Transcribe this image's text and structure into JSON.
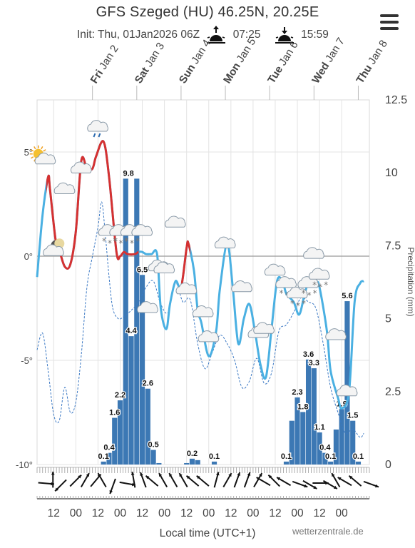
{
  "header": {
    "title": "GFS Szeged (HU) 46.25N, 20.25E",
    "init": "Init: Thu, 01Jan2026 06Z",
    "sunrise": "07:25",
    "sunset": "15:59",
    "menu_icon": "hamburger-menu-icon"
  },
  "footer": {
    "xlabel": "Local time (UTC+1)",
    "credit": "wetterzentrale.de"
  },
  "chart_data": {
    "type": "line",
    "colors": {
      "temp_warm": "#d63131",
      "temp_cold": "#4ab0e2",
      "dewpoint": "#3a78c4",
      "precip_bar": "#3c78b4",
      "freeze_line": "#999999",
      "grid": "#e3e3e3"
    },
    "day_labels": [
      {
        "day": "Fri",
        "date": "Jan 2",
        "x_hour": 33
      },
      {
        "day": "Sat",
        "date": "Jan 3",
        "x_hour": 57
      },
      {
        "day": "Sun",
        "date": "Jan 4",
        "x_hour": 81
      },
      {
        "day": "Mon",
        "date": "Jan 5",
        "x_hour": 105
      },
      {
        "day": "Tue",
        "date": "Jan 6",
        "x_hour": 129
      },
      {
        "day": "Wed",
        "date": "Jan 7",
        "x_hour": 153
      },
      {
        "day": "Thu",
        "date": "Jan 8",
        "x_hour": 177
      }
    ],
    "x_tick_labels": [
      {
        "label": "12",
        "x_hour": 12
      },
      {
        "label": "00",
        "x_hour": 24
      },
      {
        "label": "12",
        "x_hour": 36
      },
      {
        "label": "00",
        "x_hour": 48
      },
      {
        "label": "12",
        "x_hour": 60
      },
      {
        "label": "00",
        "x_hour": 72
      },
      {
        "label": "12",
        "x_hour": 84
      },
      {
        "label": "00",
        "x_hour": 96
      },
      {
        "label": "12",
        "x_hour": 108
      },
      {
        "label": "00",
        "x_hour": 120
      },
      {
        "label": "12",
        "x_hour": 132
      },
      {
        "label": "00",
        "x_hour": 144
      },
      {
        "label": "12",
        "x_hour": 156
      },
      {
        "label": "00",
        "x_hour": 168
      }
    ],
    "x_range_hours": [
      3,
      183
    ],
    "left_axis": {
      "ticks": [
        5,
        0,
        -5,
        -10
      ],
      "labels": [
        "5°",
        "0°",
        "-5°",
        "-10°"
      ],
      "ylim": [
        -10,
        7.5
      ]
    },
    "right_axis": {
      "ticks": [
        12.5,
        10,
        7.5,
        5,
        2.5,
        0
      ],
      "labels": [
        "12.5",
        "10",
        "7.5",
        "5",
        "2.5",
        "0"
      ],
      "ylim": [
        0,
        12.5
      ],
      "label": "Precipitation (mm)"
    },
    "temperature": {
      "x": [
        3,
        6,
        9,
        10,
        13,
        15,
        18,
        21,
        24,
        27,
        30,
        33,
        35,
        39,
        42,
        46,
        48,
        50,
        52,
        56,
        58,
        60,
        62,
        65,
        68,
        70,
        73,
        75,
        78,
        81,
        84,
        85,
        88,
        90,
        92,
        96,
        100,
        102,
        106,
        109,
        112,
        115,
        118,
        121,
        124,
        127,
        130,
        133,
        136,
        138,
        142,
        145,
        148,
        151,
        154,
        156,
        160,
        162,
        166,
        168,
        172,
        175,
        178,
        180
      ],
      "y": [
        -1,
        2,
        3.8,
        3.2,
        0.8,
        0.3,
        -0.5,
        -0.4,
        1.2,
        4.6,
        4.2,
        4.2,
        4.8,
        5.5,
        3.8,
        0.2,
        0,
        0.2,
        0.1,
        0.1,
        0.2,
        0.2,
        0.1,
        0.1,
        0.1,
        -2.5,
        -3.5,
        -2.3,
        -1.2,
        -1.5,
        0.4,
        0.6,
        -0.7,
        -2.6,
        -3.2,
        -4.8,
        -3.6,
        -1.6,
        0.6,
        -1.5,
        -4.2,
        -3,
        -2.3,
        -3.6,
        -5.2,
        -5.8,
        -3.5,
        -1.2,
        -1.2,
        -1.8,
        -2.2,
        -2.8,
        -1.8,
        -1,
        -1.2,
        -1.5,
        -3.6,
        -5.5,
        -6.8,
        -7.3,
        -6.5,
        -2.2,
        -1.3,
        -1.2
      ],
      "warm_segments": [
        [
          8,
          58
        ],
        [
          81,
          86
        ]
      ]
    },
    "dewpoint": {
      "x": [
        3,
        6,
        9,
        12,
        15,
        18,
        21,
        24,
        27,
        30,
        33,
        36,
        38,
        40,
        42,
        44,
        47,
        50,
        54,
        58,
        62,
        66,
        70,
        74,
        78,
        82,
        86,
        90,
        94,
        98,
        102,
        106,
        110,
        114,
        118,
        122,
        126,
        130,
        134,
        138,
        142,
        146,
        150,
        154,
        158,
        162,
        166,
        170,
        174,
        178,
        180
      ],
      "y": [
        -4.5,
        -3.7,
        -5.5,
        -7.6,
        -7.9,
        -6.3,
        -7.5,
        -7,
        -4.7,
        -1.5,
        0,
        1.4,
        2.6,
        1,
        -1,
        -2.5,
        -3,
        -2.9,
        -2.6,
        -2.2,
        -1.5,
        -1.2,
        -2.3,
        -2.7,
        -1.3,
        -2.2,
        -2.1,
        -4.2,
        -5.4,
        -4.6,
        -3.8,
        -4.2,
        -5,
        -6.3,
        -6,
        -4.9,
        -6.1,
        -5.6,
        -3.6,
        -3.3,
        -2.7,
        -2,
        -2.2,
        -2.5,
        -4.2,
        -6.3,
        -7.5,
        -8.5,
        -8.3,
        -8.7,
        -8.5
      ]
    },
    "precipitation": {
      "bars": [
        {
          "x": 39,
          "v": 0.1
        },
        {
          "x": 42,
          "v": 0.4
        },
        {
          "x": 45,
          "v": 1.6
        },
        {
          "x": 48,
          "v": 2.2
        },
        {
          "x": 51,
          "v": 9.8
        },
        {
          "x": 54,
          "v": 4.4
        },
        {
          "x": 57,
          "v": 9.8
        },
        {
          "x": 60,
          "v": 6.5
        },
        {
          "x": 63,
          "v": 2.6
        },
        {
          "x": 66,
          "v": 0.5
        },
        {
          "x": 69,
          "v": 0.05
        },
        {
          "x": 84,
          "v": 0.05
        },
        {
          "x": 87,
          "v": 0.2
        },
        {
          "x": 90,
          "v": 0.15
        },
        {
          "x": 99,
          "v": 0.1
        },
        {
          "x": 138,
          "v": 0.1
        },
        {
          "x": 141,
          "v": 1.5
        },
        {
          "x": 144,
          "v": 2.3
        },
        {
          "x": 147,
          "v": 1.8
        },
        {
          "x": 150,
          "v": 3.6
        },
        {
          "x": 153,
          "v": 3.3
        },
        {
          "x": 156,
          "v": 1.1
        },
        {
          "x": 159,
          "v": 0.4
        },
        {
          "x": 162,
          "v": 0.1
        },
        {
          "x": 165,
          "v": 1.2
        },
        {
          "x": 168,
          "v": 1.9
        },
        {
          "x": 171,
          "v": 5.6
        },
        {
          "x": 174,
          "v": 1.5
        },
        {
          "x": 177,
          "v": 0.1
        }
      ],
      "labels": [
        {
          "text": "0.1",
          "x": 39,
          "v": 0.1
        },
        {
          "text": "0.4",
          "x": 42,
          "v": 0.4
        },
        {
          "text": "1.6",
          "x": 45,
          "v": 1.6
        },
        {
          "text": "2.2",
          "x": 48,
          "v": 2.2
        },
        {
          "text": "9.8",
          "x": 52.5,
          "v": 9.8
        },
        {
          "text": "4.4",
          "x": 54,
          "v": 4.4
        },
        {
          "text": "6.5",
          "x": 60,
          "v": 6.5
        },
        {
          "text": "2.6",
          "x": 63,
          "v": 2.6
        },
        {
          "text": "0.5",
          "x": 66,
          "v": 0.5
        },
        {
          "text": "0.2",
          "x": 87,
          "v": 0.2
        },
        {
          "text": "0.1",
          "x": 99,
          "v": 0.1
        },
        {
          "text": "0.1",
          "x": 138,
          "v": 0.1
        },
        {
          "text": "2.3",
          "x": 144,
          "v": 2.3
        },
        {
          "text": "1.8",
          "x": 147,
          "v": 1.8
        },
        {
          "text": "3.6",
          "x": 150,
          "v": 3.6
        },
        {
          "text": "3.3",
          "x": 153,
          "v": 3.3
        },
        {
          "text": "1.1",
          "x": 156,
          "v": 1.1
        },
        {
          "text": "0.4",
          "x": 159,
          "v": 0.4
        },
        {
          "text": "0.1",
          "x": 162,
          "v": 0.1
        },
        {
          "text": "1.9",
          "x": 168,
          "v": 1.9
        },
        {
          "text": "5.6",
          "x": 171,
          "v": 5.6
        },
        {
          "text": "1.5",
          "x": 174,
          "v": 1.5
        },
        {
          "text": "0.1",
          "x": 177,
          "v": 0.1
        }
      ]
    },
    "weather_icons": [
      {
        "x": 6,
        "y": 4.7,
        "icon": "sun-cloud-icon"
      },
      {
        "x": 12,
        "y": 0.3,
        "icon": "moon-cloud-icon"
      },
      {
        "x": 18,
        "y": 3.2,
        "icon": "cloud-icon"
      },
      {
        "x": 27,
        "y": 4.2,
        "icon": "cloud-icon"
      },
      {
        "x": 36,
        "y": 6.2,
        "icon": "rain-cloud-icon"
      },
      {
        "x": 42,
        "y": 1.2,
        "icon": "snow-cloud-icon"
      },
      {
        "x": 48,
        "y": 1.2,
        "icon": "snow-cloud-icon"
      },
      {
        "x": 54,
        "y": 1.2,
        "icon": "snow-cloud-icon"
      },
      {
        "x": 60,
        "y": 1.2,
        "icon": "cloud-icon"
      },
      {
        "x": 63,
        "y": -2.5,
        "icon": "cloud-icon"
      },
      {
        "x": 69,
        "y": -0.5,
        "icon": "cloud-icon"
      },
      {
        "x": 72,
        "y": -0.6,
        "icon": "cloud-icon"
      },
      {
        "x": 78,
        "y": 1.6,
        "icon": "cloud-icon"
      },
      {
        "x": 84,
        "y": -1.6,
        "icon": "cloud-icon"
      },
      {
        "x": 93,
        "y": -2.7,
        "icon": "cloud-icon"
      },
      {
        "x": 96,
        "y": -3.9,
        "icon": "cloud-icon"
      },
      {
        "x": 105,
        "y": 0.6,
        "icon": "cloud-icon"
      },
      {
        "x": 114,
        "y": -1.5,
        "icon": "cloud-icon"
      },
      {
        "x": 123,
        "y": -3.7,
        "icon": "cloud-icon"
      },
      {
        "x": 126,
        "y": -3.5,
        "icon": "cloud-icon"
      },
      {
        "x": 132,
        "y": -0.7,
        "icon": "cloud-icon"
      },
      {
        "x": 138,
        "y": -1.3,
        "icon": "snow-cloud-icon"
      },
      {
        "x": 144,
        "y": -1.8,
        "icon": "snow-cloud-icon"
      },
      {
        "x": 150,
        "y": -1.3,
        "icon": "snow-cloud-icon"
      },
      {
        "x": 153,
        "y": 0.1,
        "icon": "cloud-icon"
      },
      {
        "x": 156,
        "y": -0.9,
        "icon": "snow-cloud-icon"
      },
      {
        "x": 165,
        "y": -3.8,
        "icon": "cloud-icon"
      },
      {
        "x": 171,
        "y": -6.5,
        "icon": "cloud-icon"
      }
    ],
    "wind_dirs_deg": [
      95,
      0,
      225,
      45,
      30,
      40,
      330,
      200,
      100,
      350,
      340,
      310,
      330,
      330,
      330,
      310,
      310,
      15,
      30,
      20,
      20,
      30,
      300,
      315,
      300,
      110,
      120,
      90,
      120,
      330,
      300,
      310,
      110
    ]
  }
}
